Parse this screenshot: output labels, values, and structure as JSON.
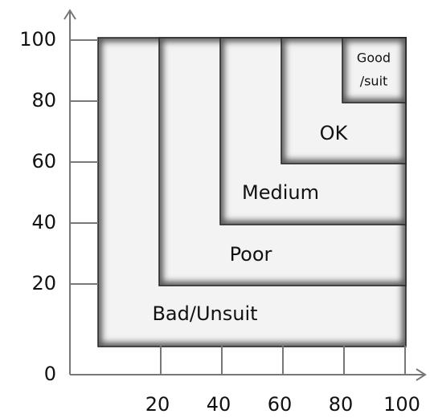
{
  "chart_data": {
    "type": "nested-regions",
    "regions": [
      {
        "label": [
          "Bad/Unsuit"
        ],
        "x0": 0,
        "y0": 0
      },
      {
        "label": [
          "Poor"
        ],
        "x0": 20,
        "y0": 20
      },
      {
        "label": [
          "Medium"
        ],
        "x0": 40,
        "y0": 40
      },
      {
        "label": [
          "OK"
        ],
        "x0": 60,
        "y0": 60
      },
      {
        "label": [
          "Good",
          "/suit"
        ],
        "x0": 80,
        "y0": 80
      }
    ],
    "xlim": [
      0,
      100
    ],
    "ylim": [
      0,
      100
    ],
    "xticks": [
      20,
      40,
      60,
      80,
      100
    ],
    "yticks": [
      0,
      20,
      40,
      60,
      80,
      100
    ]
  }
}
